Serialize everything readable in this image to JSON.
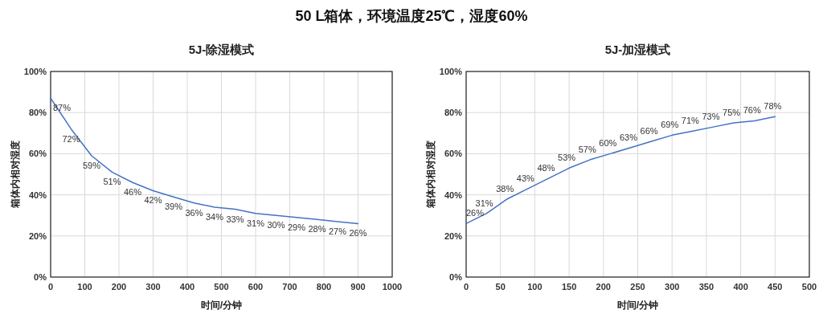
{
  "chart_data": [
    {
      "type": "line",
      "title": "5J-除湿模式",
      "annotations": [
        "50 L箱体，环境温度25℃，湿度60%"
      ],
      "xlabel": "时间/分钟",
      "ylabel": "箱体内相对湿度",
      "x": [
        0,
        60,
        120,
        180,
        240,
        300,
        360,
        420,
        480,
        540,
        600,
        660,
        720,
        780,
        840,
        900
      ],
      "series": [
        {
          "color": "#4472c4",
          "values": [
            87,
            72,
            59,
            51,
            46,
            42,
            39,
            36,
            34,
            33,
            31,
            30,
            29,
            28,
            27,
            26
          ],
          "value_labels": [
            "87%",
            "72%",
            "59%",
            "51%",
            "46%",
            "42%",
            "39%",
            "36%",
            "34%",
            "33%",
            "31%",
            "30%",
            "29%",
            "28%",
            "27%",
            "26%"
          ]
        }
      ],
      "xlim": [
        0,
        1000
      ],
      "xticks": [
        0,
        100,
        200,
        300,
        400,
        500,
        600,
        700,
        800,
        900,
        1000
      ],
      "ylim": [
        0,
        100
      ],
      "yticks": [
        {
          "value": 0,
          "label": "0%"
        },
        {
          "value": 20,
          "label": "20%"
        },
        {
          "value": 40,
          "label": "40%"
        },
        {
          "value": 60,
          "label": "60%"
        },
        {
          "value": 80,
          "label": "80%"
        },
        {
          "value": 100,
          "label": "100%"
        }
      ],
      "grid": true,
      "marker": "none",
      "line_style": "solid"
    },
    {
      "type": "line",
      "title": "5J-加湿模式",
      "xlabel": "时间/分钟",
      "ylabel": "箱体内相对湿度",
      "x": [
        0,
        30,
        60,
        90,
        120,
        150,
        180,
        210,
        240,
        270,
        300,
        330,
        360,
        390,
        420,
        450
      ],
      "series": [
        {
          "color": "#4472c4",
          "values": [
            26,
            31,
            38,
            43,
            48,
            53,
            57,
            60,
            63,
            66,
            69,
            71,
            73,
            75,
            76,
            78
          ],
          "value_labels": [
            "26%",
            "31%",
            "38%",
            "43%",
            "48%",
            "53%",
            "57%",
            "60%",
            "63%",
            "66%",
            "69%",
            "71%",
            "73%",
            "75%",
            "76%",
            "78%"
          ]
        }
      ],
      "xlim": [
        0,
        500
      ],
      "xticks": [
        0,
        50,
        100,
        150,
        200,
        250,
        300,
        350,
        400,
        450,
        500
      ],
      "ylim": [
        0,
        100
      ],
      "yticks": [
        {
          "value": 0,
          "label": "0%"
        },
        {
          "value": 20,
          "label": "20%"
        },
        {
          "value": 40,
          "label": "40%"
        },
        {
          "value": 60,
          "label": "60%"
        },
        {
          "value": 80,
          "label": "80%"
        },
        {
          "value": 100,
          "label": "100%"
        }
      ],
      "grid": true,
      "marker": "none",
      "line_style": "solid"
    }
  ]
}
